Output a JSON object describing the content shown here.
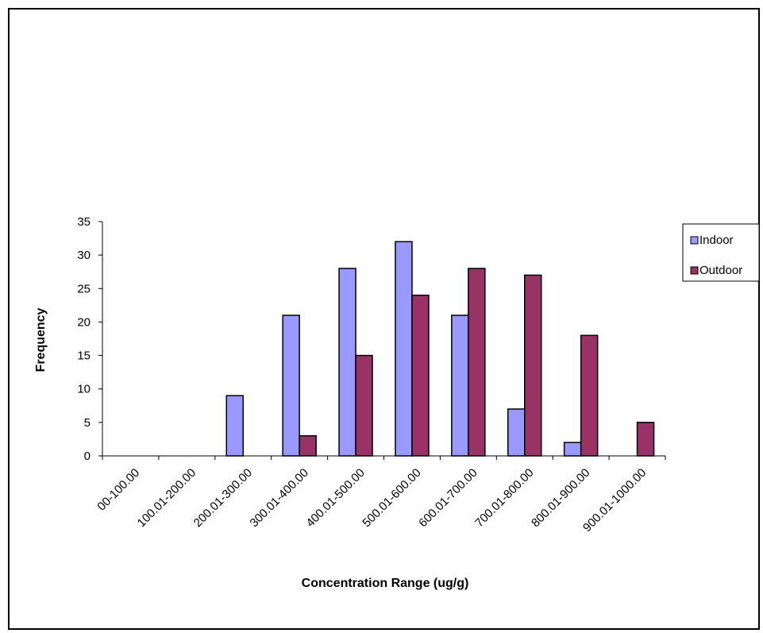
{
  "chart_data": {
    "type": "bar",
    "categories": [
      "00-100.00",
      "100.01-200.00",
      "200.01-300.00",
      "300.01-400.00",
      "400.01-500.00",
      "500.01-600.00",
      "600.01-700.00",
      "700.01-800.00",
      "800.01-900.00",
      "900.01-1000.00"
    ],
    "series": [
      {
        "name": "Indoor",
        "values": [
          0,
          0,
          9,
          21,
          28,
          32,
          21,
          7,
          2,
          0
        ],
        "color": "#9999ff"
      },
      {
        "name": "Outdoor",
        "values": [
          0,
          0,
          0,
          3,
          15,
          24,
          28,
          27,
          18,
          5
        ],
        "color": "#993366"
      }
    ],
    "title": "",
    "xlabel": "Concentration Range (ug/g)",
    "ylabel": "Frequency",
    "ylim": [
      0,
      35
    ],
    "yticks": [
      0,
      5,
      10,
      15,
      20,
      25,
      30,
      35
    ],
    "grid": false,
    "legend_position": "right"
  }
}
